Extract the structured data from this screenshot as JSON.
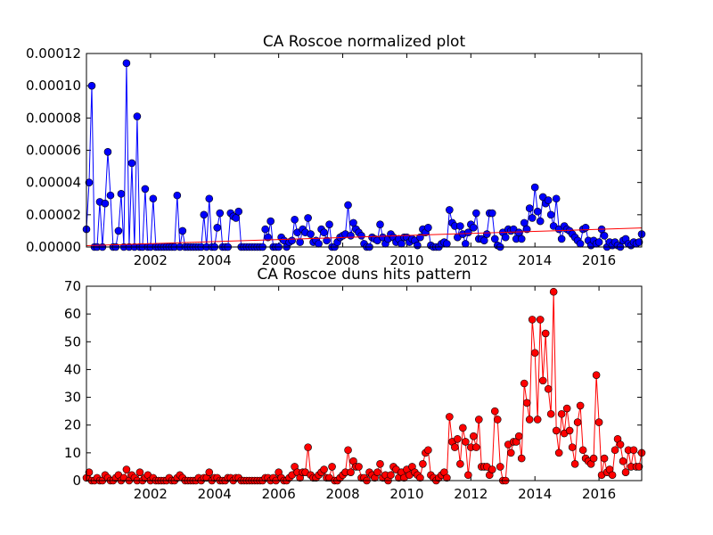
{
  "chart_data": [
    {
      "type": "line",
      "title": "CA Roscoe normalized plot",
      "xlim": [
        2000,
        2017.333
      ],
      "xticks": [
        2002,
        2004,
        2006,
        2008,
        2010,
        2012,
        2014,
        2016
      ],
      "ylim": [
        0,
        0.00012
      ],
      "yticks": [
        {
          "value": 0,
          "label": "0.00000"
        },
        {
          "value": 2e-05,
          "label": "0.00002"
        },
        {
          "value": 4e-05,
          "label": "0.00004"
        },
        {
          "value": 6e-05,
          "label": "0.00006"
        },
        {
          "value": 8e-05,
          "label": "0.00008"
        },
        {
          "value": 0.0001,
          "label": "0.00010"
        },
        {
          "value": 0.00012,
          "label": "0.00012"
        }
      ],
      "series": [
        {
          "color": "#0000ff",
          "marker": true,
          "x": [
            2000,
            2000.083,
            2000.167,
            2000.25,
            2000.333,
            2000.417,
            2000.5,
            2000.583,
            2000.667,
            2000.75,
            2000.833,
            2000.917,
            2001,
            2001.083,
            2001.167,
            2001.25,
            2001.333,
            2001.417,
            2001.5,
            2001.583,
            2001.667,
            2001.75,
            2001.833,
            2001.917,
            2002,
            2002.083,
            2002.167,
            2002.25,
            2002.333,
            2002.417,
            2002.5,
            2002.583,
            2002.667,
            2002.75,
            2002.833,
            2002.917,
            2003,
            2003.083,
            2003.167,
            2003.25,
            2003.333,
            2003.417,
            2003.5,
            2003.583,
            2003.667,
            2003.75,
            2003.833,
            2003.917,
            2004,
            2004.083,
            2004.167,
            2004.25,
            2004.333,
            2004.417,
            2004.5,
            2004.583,
            2004.667,
            2004.75,
            2004.833,
            2004.917,
            2005,
            2005.083,
            2005.167,
            2005.25,
            2005.333,
            2005.417,
            2005.5,
            2005.583,
            2005.667,
            2005.75,
            2005.833,
            2005.917,
            2006,
            2006.083,
            2006.167,
            2006.25,
            2006.333,
            2006.417,
            2006.5,
            2006.583,
            2006.667,
            2006.75,
            2006.833,
            2006.917,
            2007,
            2007.083,
            2007.167,
            2007.25,
            2007.333,
            2007.417,
            2007.5,
            2007.583,
            2007.667,
            2007.75,
            2007.833,
            2007.917,
            2008,
            2008.083,
            2008.167,
            2008.25,
            2008.333,
            2008.417,
            2008.5,
            2008.583,
            2008.667,
            2008.75,
            2008.833,
            2008.917,
            2009,
            2009.083,
            2009.167,
            2009.25,
            2009.333,
            2009.417,
            2009.5,
            2009.583,
            2009.667,
            2009.75,
            2009.833,
            2009.917,
            2010,
            2010.083,
            2010.167,
            2010.25,
            2010.333,
            2010.417,
            2010.5,
            2010.583,
            2010.667,
            2010.75,
            2010.833,
            2010.917,
            2011,
            2011.083,
            2011.167,
            2011.25,
            2011.333,
            2011.417,
            2011.5,
            2011.583,
            2011.667,
            2011.75,
            2011.833,
            2011.917,
            2012,
            2012.083,
            2012.167,
            2012.25,
            2012.333,
            2012.417,
            2012.5,
            2012.583,
            2012.667,
            2012.75,
            2012.833,
            2012.917,
            2013,
            2013.083,
            2013.167,
            2013.25,
            2013.333,
            2013.417,
            2013.5,
            2013.583,
            2013.667,
            2013.75,
            2013.833,
            2013.917,
            2014,
            2014.083,
            2014.167,
            2014.25,
            2014.333,
            2014.417,
            2014.5,
            2014.583,
            2014.667,
            2014.75,
            2014.833,
            2014.917,
            2015,
            2015.083,
            2015.167,
            2015.25,
            2015.333,
            2015.417,
            2015.5,
            2015.583,
            2015.667,
            2015.75,
            2015.833,
            2015.917,
            2016,
            2016.083,
            2016.167,
            2016.25,
            2016.333,
            2016.417,
            2016.5,
            2016.583,
            2016.667,
            2016.75,
            2016.833,
            2016.917,
            2017,
            2017.083,
            2017.167,
            2017.25,
            2017.333
          ],
          "values": [
            1.1e-05,
            4e-05,
            0.0001,
            0,
            0,
            2.8e-05,
            0,
            2.7e-05,
            5.9e-05,
            3.2e-05,
            0,
            0,
            1e-05,
            3.3e-05,
            0,
            0.000114,
            0,
            5.2e-05,
            0,
            8.1e-05,
            0,
            0,
            3.6e-05,
            0,
            0,
            3e-05,
            0,
            0,
            0,
            0,
            0,
            0,
            0,
            0,
            3.2e-05,
            0,
            1e-05,
            0,
            0,
            0,
            0,
            0,
            0,
            0,
            2e-05,
            0,
            3e-05,
            0,
            0,
            1.2e-05,
            2.1e-05,
            0,
            0,
            0,
            2.1e-05,
            1.9e-05,
            1.8e-05,
            2.2e-05,
            0,
            0,
            0,
            0,
            0,
            0,
            0,
            0,
            0,
            1.1e-05,
            6e-06,
            1.6e-05,
            0,
            0,
            0,
            6e-06,
            4e-06,
            0,
            3e-06,
            4e-06,
            1.7e-05,
            9e-06,
            3e-06,
            1.1e-05,
            9e-06,
            1.8e-05,
            8e-06,
            3e-06,
            4e-06,
            2e-06,
            1.1e-05,
            9e-06,
            4e-06,
            1.4e-05,
            0,
            0,
            3e-06,
            6e-06,
            7e-06,
            8e-06,
            2.6e-05,
            7e-06,
            1.5e-05,
            1.1e-05,
            9e-06,
            7e-06,
            2e-06,
            0,
            0,
            6e-06,
            5e-06,
            4e-06,
            1.4e-05,
            6e-06,
            2e-06,
            5e-06,
            8e-06,
            6e-06,
            3e-06,
            5e-06,
            2e-06,
            6e-06,
            6e-06,
            3e-06,
            5e-06,
            4e-06,
            1e-06,
            6e-06,
            1.1e-05,
            9e-06,
            1.2e-05,
            1e-06,
            0,
            0,
            0,
            2e-06,
            3e-06,
            2e-06,
            2.3e-05,
            1.5e-05,
            1.3e-05,
            6e-06,
            1.3e-05,
            8e-06,
            2e-06,
            9e-06,
            1.4e-05,
            1.2e-05,
            2.1e-05,
            5e-06,
            5e-06,
            4e-06,
            8e-06,
            2.1e-05,
            2.1e-05,
            5e-06,
            1e-06,
            0,
            9e-06,
            6e-06,
            1.1e-05,
            1e-05,
            1.1e-05,
            5e-06,
            9e-06,
            5e-06,
            1.5e-05,
            1.1e-05,
            2.4e-05,
            1.8e-05,
            3.7e-05,
            2.2e-05,
            1.6e-05,
            3.1e-05,
            2.7e-05,
            2.9e-05,
            2e-05,
            1.3e-05,
            3e-05,
            1.1e-05,
            5e-06,
            1.3e-05,
            1.1e-05,
            1e-05,
            8e-06,
            6e-06,
            4e-06,
            2e-06,
            1.1e-05,
            1.2e-05,
            4e-06,
            1e-06,
            4e-06,
            2e-06,
            3e-06,
            1.1e-05,
            7e-06,
            0,
            3e-06,
            1e-06,
            3e-06,
            1e-06,
            0,
            4e-06,
            5e-06,
            2e-06,
            1e-06,
            3e-06,
            2e-06,
            3e-06,
            8e-06
          ]
        },
        {
          "color": "#ff0000",
          "marker": false,
          "x": [
            2000,
            2017.333
          ],
          "values": [
            8e-07,
            1.18e-05
          ]
        }
      ]
    },
    {
      "type": "line",
      "title": "CA Roscoe duns hits pattern",
      "xlim": [
        2000,
        2017.333
      ],
      "xticks": [
        2002,
        2004,
        2006,
        2008,
        2010,
        2012,
        2014,
        2016
      ],
      "ylim": [
        0,
        70
      ],
      "yticks": [
        0,
        10,
        20,
        30,
        40,
        50,
        60,
        70
      ],
      "series": [
        {
          "color": "#ff0000",
          "marker": true,
          "x": [
            2000,
            2000.083,
            2000.167,
            2000.25,
            2000.333,
            2000.417,
            2000.5,
            2000.583,
            2000.667,
            2000.75,
            2000.833,
            2000.917,
            2001,
            2001.083,
            2001.167,
            2001.25,
            2001.333,
            2001.417,
            2001.5,
            2001.583,
            2001.667,
            2001.75,
            2001.833,
            2001.917,
            2002,
            2002.083,
            2002.167,
            2002.25,
            2002.333,
            2002.417,
            2002.5,
            2002.583,
            2002.667,
            2002.75,
            2002.833,
            2002.917,
            2003,
            2003.083,
            2003.167,
            2003.25,
            2003.333,
            2003.417,
            2003.5,
            2003.583,
            2003.667,
            2003.75,
            2003.833,
            2003.917,
            2004,
            2004.083,
            2004.167,
            2004.25,
            2004.333,
            2004.417,
            2004.5,
            2004.583,
            2004.667,
            2004.75,
            2004.833,
            2004.917,
            2005,
            2005.083,
            2005.167,
            2005.25,
            2005.333,
            2005.417,
            2005.5,
            2005.583,
            2005.667,
            2005.75,
            2005.833,
            2005.917,
            2006,
            2006.083,
            2006.167,
            2006.25,
            2006.333,
            2006.417,
            2006.5,
            2006.583,
            2006.667,
            2006.75,
            2006.833,
            2006.917,
            2007,
            2007.083,
            2007.167,
            2007.25,
            2007.333,
            2007.417,
            2007.5,
            2007.583,
            2007.667,
            2007.75,
            2007.833,
            2007.917,
            2008,
            2008.083,
            2008.167,
            2008.25,
            2008.333,
            2008.417,
            2008.5,
            2008.583,
            2008.667,
            2008.75,
            2008.833,
            2008.917,
            2009,
            2009.083,
            2009.167,
            2009.25,
            2009.333,
            2009.417,
            2009.5,
            2009.583,
            2009.667,
            2009.75,
            2009.833,
            2009.917,
            2010,
            2010.083,
            2010.167,
            2010.25,
            2010.333,
            2010.417,
            2010.5,
            2010.583,
            2010.667,
            2010.75,
            2010.833,
            2010.917,
            2011,
            2011.083,
            2011.167,
            2011.25,
            2011.333,
            2011.417,
            2011.5,
            2011.583,
            2011.667,
            2011.75,
            2011.833,
            2011.917,
            2012,
            2012.083,
            2012.167,
            2012.25,
            2012.333,
            2012.417,
            2012.5,
            2012.583,
            2012.667,
            2012.75,
            2012.833,
            2012.917,
            2013,
            2013.083,
            2013.167,
            2013.25,
            2013.333,
            2013.417,
            2013.5,
            2013.583,
            2013.667,
            2013.75,
            2013.833,
            2013.917,
            2014,
            2014.083,
            2014.167,
            2014.25,
            2014.333,
            2014.417,
            2014.5,
            2014.583,
            2014.667,
            2014.75,
            2014.833,
            2014.917,
            2015,
            2015.083,
            2015.167,
            2015.25,
            2015.333,
            2015.417,
            2015.5,
            2015.583,
            2015.667,
            2015.75,
            2015.833,
            2015.917,
            2016,
            2016.083,
            2016.167,
            2016.25,
            2016.333,
            2016.417,
            2016.5,
            2016.583,
            2016.667,
            2016.75,
            2016.833,
            2016.917,
            2017,
            2017.083,
            2017.167,
            2017.25,
            2017.333
          ],
          "values": [
            1,
            3,
            0,
            0,
            1,
            0,
            0,
            2,
            1,
            0,
            0,
            1,
            2,
            0,
            1,
            4,
            0,
            2,
            1,
            0,
            3,
            0,
            1,
            2,
            0,
            1,
            0,
            0,
            0,
            0,
            0,
            1,
            0,
            0,
            1,
            2,
            1,
            0,
            0,
            0,
            0,
            0,
            1,
            0,
            1,
            1,
            3,
            0,
            1,
            1,
            0,
            0,
            0,
            1,
            1,
            0,
            1,
            1,
            0,
            0,
            0,
            0,
            0,
            0,
            0,
            0,
            0,
            1,
            1,
            0,
            1,
            0,
            3,
            1,
            0,
            0,
            1,
            2,
            5,
            3,
            1,
            3,
            3,
            12,
            2,
            1,
            1,
            2,
            3,
            4,
            1,
            1,
            5,
            0,
            0,
            1,
            2,
            3,
            11,
            3,
            7,
            5,
            5,
            1,
            1,
            0,
            3,
            2,
            1,
            3,
            6,
            1,
            2,
            0,
            2,
            5,
            4,
            1,
            3,
            1,
            4,
            2,
            5,
            3,
            2,
            1,
            6,
            10,
            11,
            2,
            1,
            0,
            1,
            2,
            3,
            1,
            23,
            14,
            12,
            15,
            6,
            19,
            14,
            2,
            12,
            16,
            12,
            22,
            5,
            5,
            5,
            2,
            4,
            25,
            22,
            5,
            0,
            0,
            13,
            10,
            14,
            14,
            16,
            8,
            35,
            28,
            22,
            58,
            46,
            22,
            58,
            36,
            53,
            33,
            24,
            68,
            18,
            10,
            24,
            17,
            26,
            18,
            12,
            6,
            21,
            27,
            11,
            8,
            7,
            6,
            8,
            38,
            21,
            2,
            8,
            3,
            4,
            2,
            11,
            15,
            13,
            7,
            3,
            11,
            5,
            11,
            5,
            5,
            10
          ]
        }
      ]
    }
  ]
}
